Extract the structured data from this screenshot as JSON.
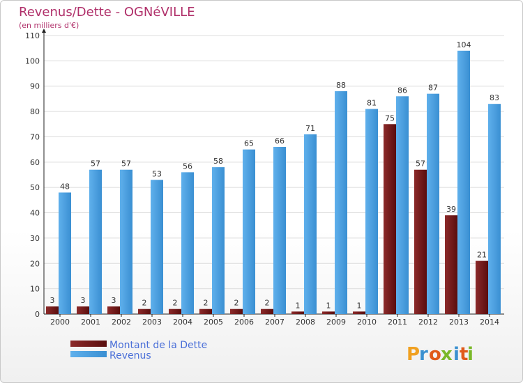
{
  "chart_data": {
    "type": "bar",
    "title": "Revenus/Dette - OGNéVILLE",
    "subtitle": "(en milliers d'€)",
    "categories": [
      "2000",
      "2001",
      "2002",
      "2003",
      "2004",
      "2005",
      "2006",
      "2007",
      "2008",
      "2009",
      "2010",
      "2011",
      "2012",
      "2013",
      "2014"
    ],
    "series": [
      {
        "name": "Montant de la Dette",
        "color": "#7a1a1a",
        "values": [
          3,
          3,
          3,
          2,
          2,
          2,
          2,
          2,
          1,
          1,
          1,
          75,
          57,
          39,
          21
        ]
      },
      {
        "name": "Revenus",
        "color": "#4aa0e0",
        "values": [
          48,
          57,
          57,
          53,
          56,
          58,
          65,
          66,
          71,
          88,
          81,
          86,
          87,
          104,
          83
        ]
      }
    ],
    "ylim": [
      0,
      110
    ],
    "yticks": [
      0,
      10,
      20,
      30,
      40,
      50,
      60,
      70,
      80,
      90,
      100,
      110
    ],
    "grid": true,
    "legend_position": "bottom-left"
  },
  "branding": {
    "logo_letters": [
      "P",
      "r",
      "o",
      "x",
      "i",
      "t",
      "i"
    ],
    "logo_colors": [
      "#f0a020",
      "#3a90d0",
      "#e05a1a",
      "#7ab828",
      "#3a90d0",
      "#e05a1a",
      "#7ab828"
    ]
  }
}
